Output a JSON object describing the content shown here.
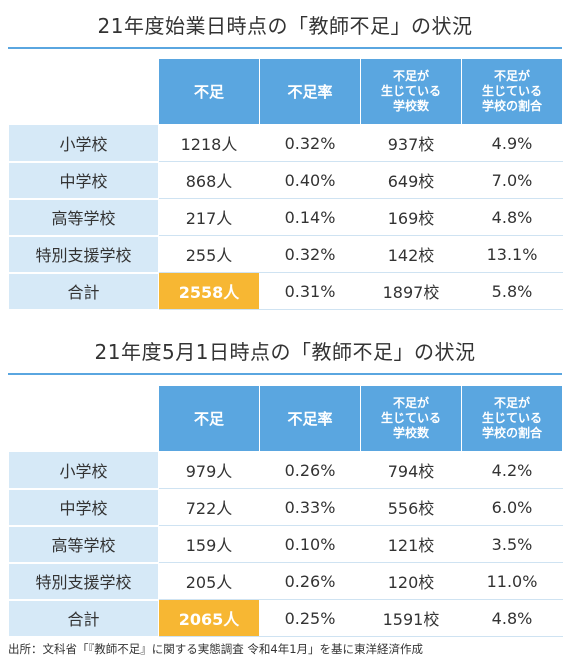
{
  "chart_data": [
    {
      "type": "table",
      "title": "21年度始業日時点の「教師不足」の状況",
      "columns": [
        "不足",
        "不足率",
        [
          "不足が",
          "生じている",
          "学校数"
        ],
        [
          "不足が",
          "生じている",
          "学校の割合"
        ]
      ],
      "rows": [
        {
          "label": "小学校",
          "cells": [
            "1218人",
            "0.32%",
            "937校",
            "4.9%"
          ]
        },
        {
          "label": "中学校",
          "cells": [
            "868人",
            "0.40%",
            "649校",
            "7.0%"
          ]
        },
        {
          "label": "高等学校",
          "cells": [
            "217人",
            "0.14%",
            "169校",
            "4.8%"
          ]
        },
        {
          "label": "特別支援学校",
          "cells": [
            "255人",
            "0.32%",
            "142校",
            "13.1%"
          ]
        },
        {
          "label": "合計",
          "cells": [
            "2558人",
            "0.31%",
            "1897校",
            "5.8%"
          ],
          "highlight_color": "#f7b733"
        }
      ]
    },
    {
      "type": "table",
      "title": "21年度5月1日時点の「教師不足」の状況",
      "columns": [
        "不足",
        "不足率",
        [
          "不足が",
          "生じている",
          "学校数"
        ],
        [
          "不足が",
          "生じている",
          "学校の割合"
        ]
      ],
      "rows": [
        {
          "label": "小学校",
          "cells": [
            "979人",
            "0.26%",
            "794校",
            "4.2%"
          ]
        },
        {
          "label": "中学校",
          "cells": [
            "722人",
            "0.33%",
            "556校",
            "6.0%"
          ]
        },
        {
          "label": "高等学校",
          "cells": [
            "159人",
            "0.10%",
            "121校",
            "3.5%"
          ]
        },
        {
          "label": "特別支援学校",
          "cells": [
            "205人",
            "0.26%",
            "120校",
            "11.0%"
          ]
        },
        {
          "label": "合計",
          "cells": [
            "2065人",
            "0.25%",
            "1591校",
            "4.8%"
          ],
          "highlight_color": "#f7b733"
        }
      ]
    }
  ],
  "colors": {
    "header_bg": "#5aa6e0",
    "rowhead_bg": "#d6e9f7",
    "highlight": "#f7b733"
  },
  "source": "出所：文科省「『教師不足』に関する実態調査 令和4年1月」を基に東洋経済作成"
}
